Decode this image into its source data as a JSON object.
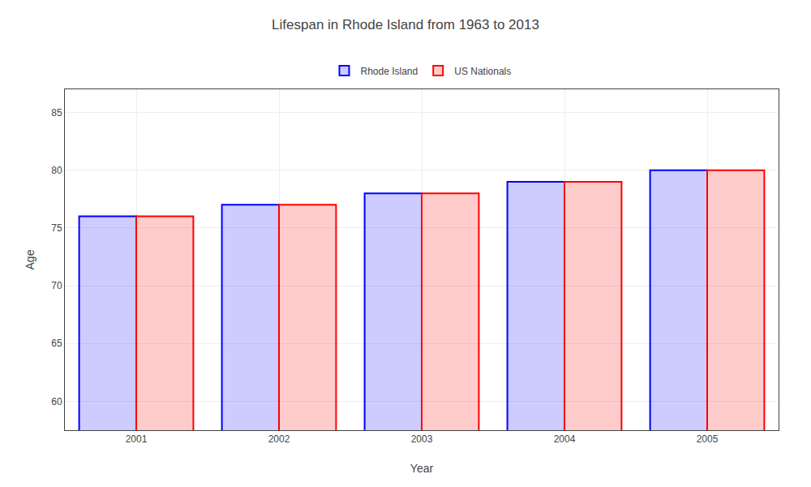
{
  "chart_data": {
    "type": "bar",
    "title": "Lifespan in Rhode Island from 1963 to 2013",
    "xlabel": "Year",
    "ylabel": "Age",
    "categories": [
      "2001",
      "2002",
      "2003",
      "2004",
      "2005"
    ],
    "series": [
      {
        "name": "Rhode Island",
        "color": "#0000ff",
        "values": [
          76,
          77,
          78,
          79,
          80
        ]
      },
      {
        "name": "US Nationals",
        "color": "#ff0000",
        "values": [
          76,
          77,
          78,
          79,
          80
        ]
      }
    ],
    "ylim": [
      57.5,
      87
    ],
    "yticks": [
      60,
      65,
      70,
      75,
      80,
      85
    ],
    "grid": true,
    "legend": "top"
  }
}
